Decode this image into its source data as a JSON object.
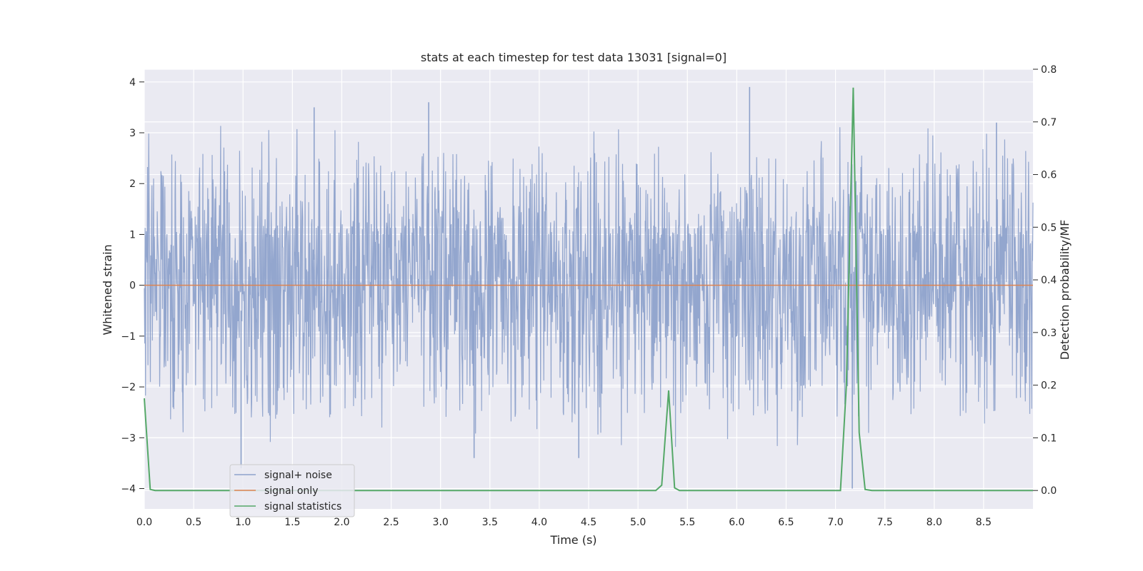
{
  "chart_data": {
    "type": "line",
    "title": "stats at each timestep for test data 13031 [signal=0]",
    "xlabel": "Time (s)",
    "ylabel": "Whitened strain",
    "ylabel_right": "Detection probability/MF",
    "xlim": [
      0.0,
      9.0
    ],
    "ylim": [
      -4.4,
      4.25
    ],
    "ylim_right": [
      -0.035,
      0.8
    ],
    "x_ticks": [
      "0.0",
      "0.5",
      "1.0",
      "1.5",
      "2.0",
      "2.5",
      "3.0",
      "3.5",
      "4.0",
      "4.5",
      "5.0",
      "5.5",
      "6.0",
      "6.5",
      "7.0",
      "7.5",
      "8.0",
      "8.5"
    ],
    "y_ticks": [
      "−4",
      "−3",
      "−2",
      "−1",
      "0",
      "1",
      "2",
      "3",
      "4"
    ],
    "y_ticks_right": [
      "0.0",
      "0.1",
      "0.2",
      "0.3",
      "0.4",
      "0.5",
      "0.6",
      "0.7",
      "0.8"
    ],
    "grid": true,
    "legend_placement": "lower-left",
    "series": [
      {
        "name": "signal+ noise",
        "axis": "left",
        "color": "#8ea2cb",
        "noise_envelope": {
          "body_range": [
            -1.0,
            1.2
          ],
          "peak_range": [
            -4.0,
            3.9
          ],
          "notable_peaks": [
            {
              "x": 1.72,
              "y": 3.5
            },
            {
              "x": 2.88,
              "y": 3.6
            },
            {
              "x": 6.13,
              "y": 3.9
            },
            {
              "x": 8.63,
              "y": 3.2
            },
            {
              "x": 0.98,
              "y": -3.6
            },
            {
              "x": 3.34,
              "y": -3.4
            },
            {
              "x": 4.4,
              "y": -3.4
            },
            {
              "x": 7.17,
              "y": -4.0
            }
          ]
        }
      },
      {
        "name": "signal only",
        "axis": "left",
        "color": "#dd8452",
        "x": [
          0.0,
          9.0
        ],
        "values": [
          0.0,
          0.0
        ]
      },
      {
        "name": "signal statistics",
        "axis": "right",
        "color": "#55a868",
        "x": [
          0.0,
          0.06,
          0.11,
          0.2,
          5.18,
          5.24,
          5.31,
          5.37,
          5.42,
          7.05,
          7.11,
          7.18,
          7.24,
          7.3,
          7.37,
          9.0
        ],
        "values": [
          0.175,
          0.002,
          0.0,
          0.0,
          0.0,
          0.01,
          0.19,
          0.005,
          0.0,
          0.0,
          0.2,
          0.765,
          0.11,
          0.002,
          0.0,
          0.0
        ]
      }
    ]
  }
}
